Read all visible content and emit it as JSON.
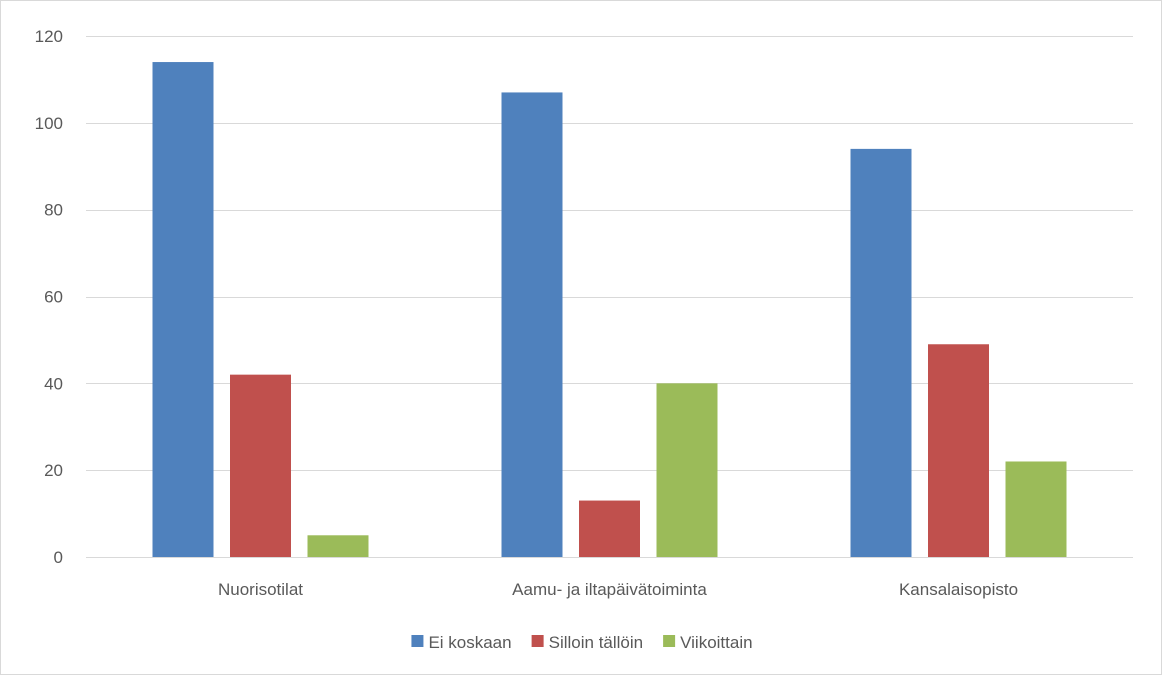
{
  "chart_data": {
    "type": "bar",
    "categories": [
      "Nuorisotilat",
      "Aamu- ja iltapäivätoiminta",
      "Kansalaisopisto"
    ],
    "series": [
      {
        "name": "Ei koskaan",
        "color": "#4f81bd",
        "values": [
          114,
          107,
          94
        ]
      },
      {
        "name": "Silloin tällöin",
        "color": "#c0504d",
        "values": [
          42,
          13,
          49
        ]
      },
      {
        "name": "Viikoittain",
        "color": "#9bbb59",
        "values": [
          5,
          40,
          22
        ]
      }
    ],
    "ylim": [
      0,
      120
    ],
    "yticks": [
      0,
      20,
      40,
      60,
      80,
      100,
      120
    ],
    "grid": true,
    "legend_position": "bottom",
    "gridline_color": "#d9d9d9",
    "text_color": "#595959"
  }
}
